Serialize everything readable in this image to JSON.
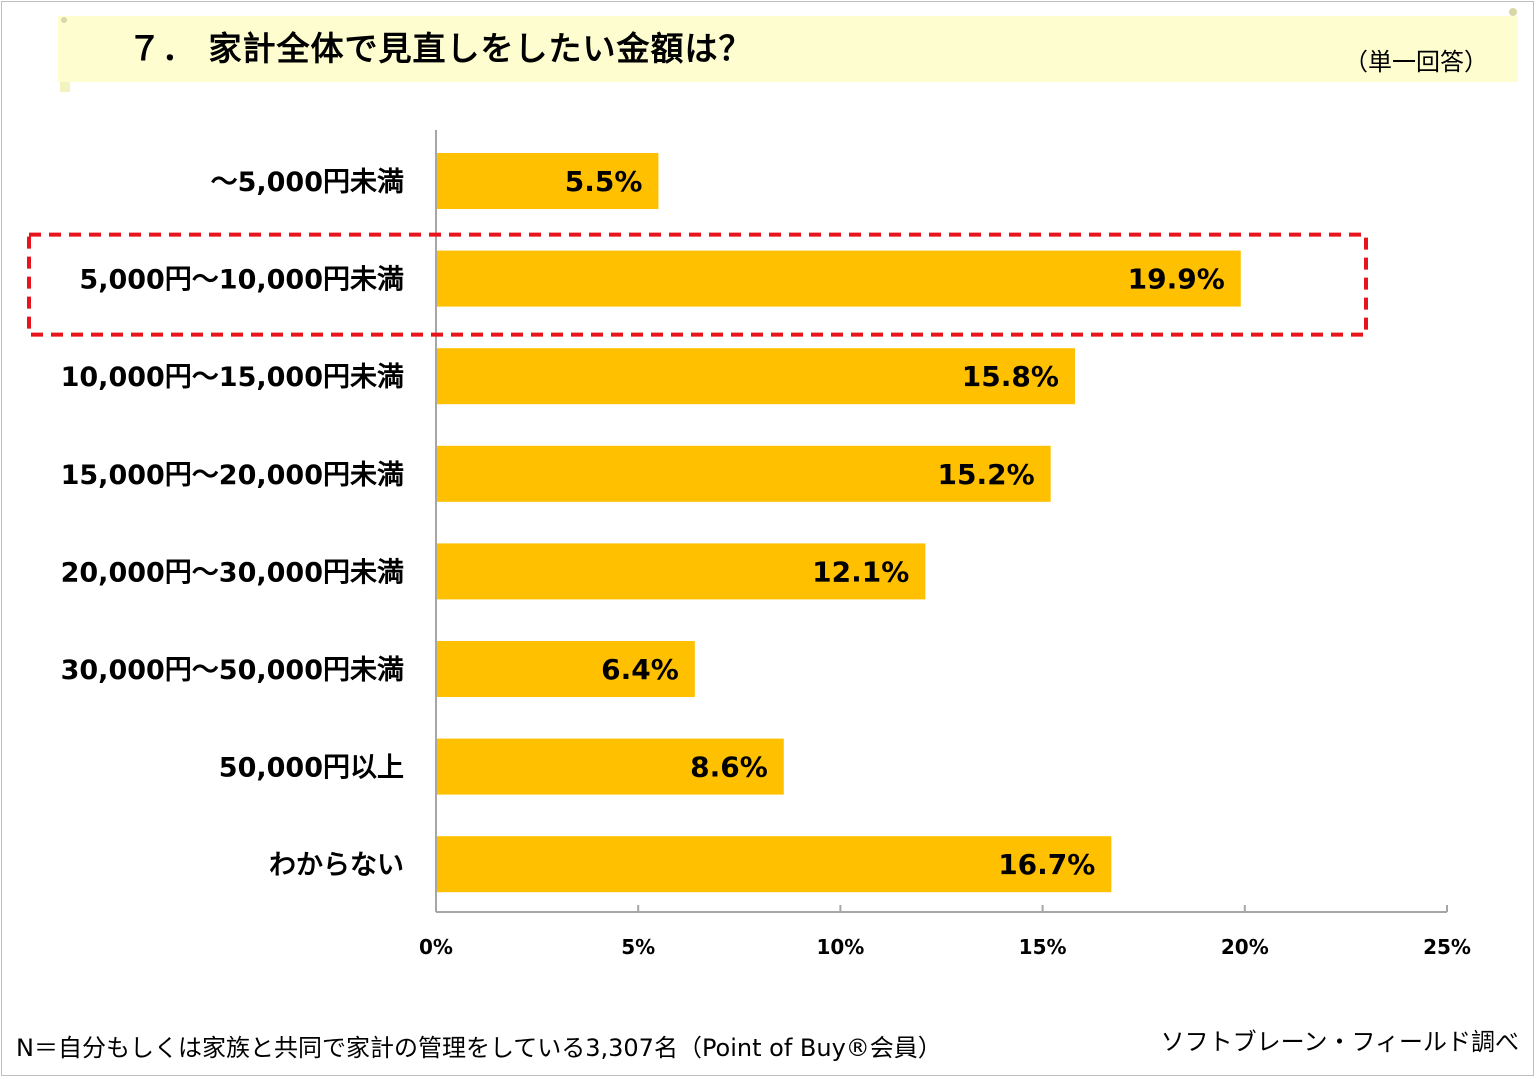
{
  "header": {
    "title": "７． 家計全体で見直しをしたい金額は？",
    "subtitle": "（単一回答）"
  },
  "footer": {
    "note": "N＝自分もしくは家族と共同で家計の管理をしている3,307名（Point of Buy®会員）",
    "source": "ソフトブレーン・フィールド調べ"
  },
  "colors": {
    "bar": "#ffc000",
    "highlight": "#e8141b",
    "axis": "#a6a6a6",
    "title_band": "#fdfdd0"
  },
  "chart_data": {
    "type": "bar",
    "orientation": "horizontal",
    "categories": [
      "～5,000円未満",
      "5,000円～10,000円未満",
      "10,000円～15,000円未満",
      "15,000円～20,000円未満",
      "20,000円～30,000円未満",
      "30,000円～50,000円未満",
      "50,000円以上",
      "わからない"
    ],
    "values": [
      5.5,
      19.9,
      15.8,
      15.2,
      12.1,
      6.4,
      8.6,
      16.7
    ],
    "data_labels": [
      "5.5%",
      "19.9%",
      "15.8%",
      "15.2%",
      "12.1%",
      "6.4%",
      "8.6%",
      "16.7%"
    ],
    "xlim": [
      0,
      25
    ],
    "xticks": [
      0,
      5,
      10,
      15,
      20,
      25
    ],
    "xtick_labels": [
      "0%",
      "5%",
      "10%",
      "15%",
      "20%",
      "25%"
    ],
    "highlighted_category": "5,000円～10,000円未満",
    "grid": false,
    "legend": "none"
  }
}
